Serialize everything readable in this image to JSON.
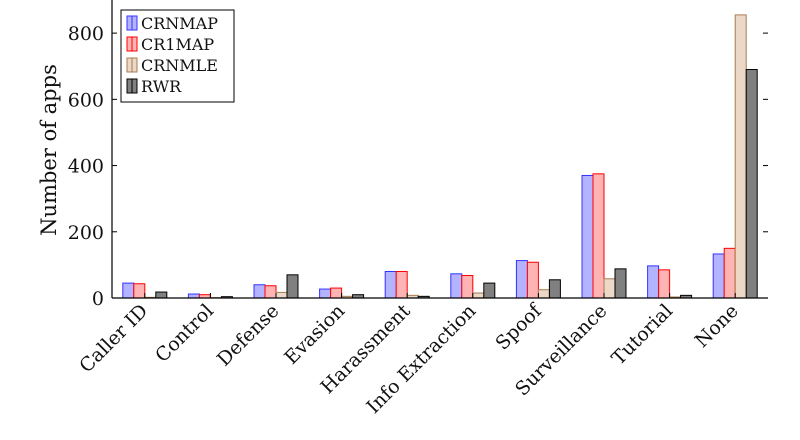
{
  "chart_data": {
    "type": "bar",
    "title": "",
    "xlabel": "",
    "ylabel": "Number of apps",
    "categories": [
      "Caller ID",
      "Control",
      "Defense",
      "Evasion",
      "Harassment",
      "Info Extraction",
      "Spoof",
      "Surveillance",
      "Tutorial",
      "None"
    ],
    "series": [
      {
        "name": "CRNMAP",
        "values": [
          45,
          12,
          40,
          27,
          80,
          73,
          113,
          370,
          97,
          133
        ],
        "fill": "#b3b3ff",
        "stroke": "#3333ff"
      },
      {
        "name": "CR1MAP",
        "values": [
          43,
          10,
          37,
          30,
          80,
          68,
          108,
          375,
          85,
          150
        ],
        "fill": "#ffb3b3",
        "stroke": "#ff0000"
      },
      {
        "name": "CRNMLE",
        "values": [
          2,
          1,
          17,
          5,
          8,
          15,
          25,
          58,
          3,
          855
        ],
        "fill": "#ecd8c6",
        "stroke": "#a67c52"
      },
      {
        "name": "RWR",
        "values": [
          18,
          4,
          70,
          10,
          5,
          45,
          55,
          88,
          8,
          690
        ],
        "fill": "#808080",
        "stroke": "#000000"
      }
    ],
    "yticks": [
      0,
      200,
      400,
      600,
      800
    ],
    "ylim": [
      0,
      900
    ],
    "grid": false,
    "legend_position": "top-left"
  }
}
